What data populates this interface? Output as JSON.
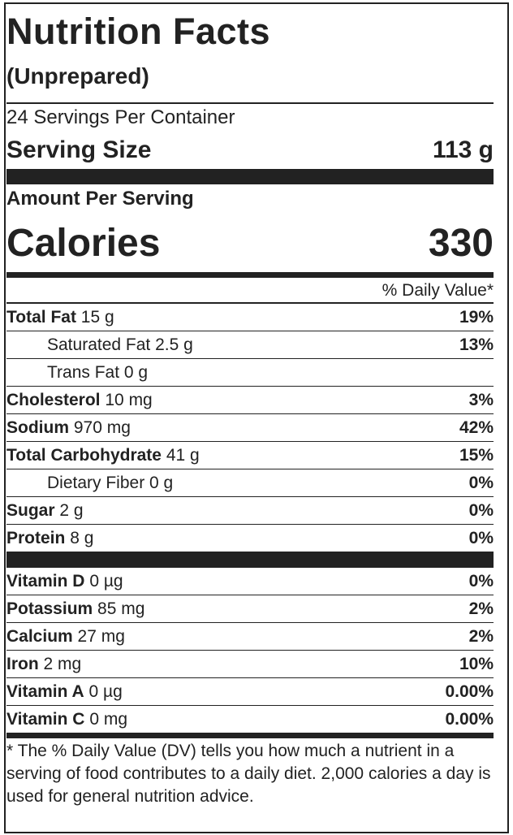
{
  "label": {
    "title": "Nutrition Facts",
    "subtitle": "(Unprepared)",
    "servings": "24 Servings Per Container",
    "serving_size": {
      "label": "Serving Size",
      "value": "113 g"
    },
    "amount_per_serving": "Amount Per Serving",
    "calories": {
      "label": "Calories",
      "value": "330"
    },
    "dv_header": "% Daily Value*",
    "nutrients": [
      {
        "name": "Total Fat",
        "amount": "15 g",
        "dv": "19%",
        "sub": [
          {
            "name": "Saturated Fat",
            "amount": "2.5 g",
            "dv": "13%"
          },
          {
            "name": "Trans Fat",
            "amount": "0 g"
          }
        ]
      },
      {
        "name": "Cholesterol",
        "amount": "10 mg",
        "dv": "3%"
      },
      {
        "name": "Sodium",
        "amount": "970 mg",
        "dv": "42%"
      },
      {
        "name": "Total Carbohydrate",
        "amount": "41 g",
        "dv": "15%",
        "sub": [
          {
            "name": "Dietary Fiber",
            "amount": "0 g",
            "dv": "0%"
          }
        ]
      },
      {
        "name": "Sugar",
        "amount": "2 g",
        "dv": "0%"
      },
      {
        "name": "Protein",
        "amount": "8 g",
        "dv": "0%"
      }
    ],
    "vitamins": [
      {
        "name": "Vitamin D",
        "amount": "0 µg",
        "dv": "0%"
      },
      {
        "name": "Potassium",
        "amount": "85 mg",
        "dv": "2%"
      },
      {
        "name": "Calcium",
        "amount": "27 mg",
        "dv": "2%"
      },
      {
        "name": "Iron",
        "amount": "2 mg",
        "dv": "10%"
      },
      {
        "name": "Vitamin A",
        "amount": "0 µg",
        "dv": "0.00%"
      },
      {
        "name": "Vitamin C",
        "amount": "0 mg",
        "dv": "0.00%"
      }
    ],
    "footnote": "* The % Daily Value (DV) tells you how much a nutrient in a serving of food contributes to a daily diet. 2,000 calories a day is used for general nutrition advice."
  }
}
